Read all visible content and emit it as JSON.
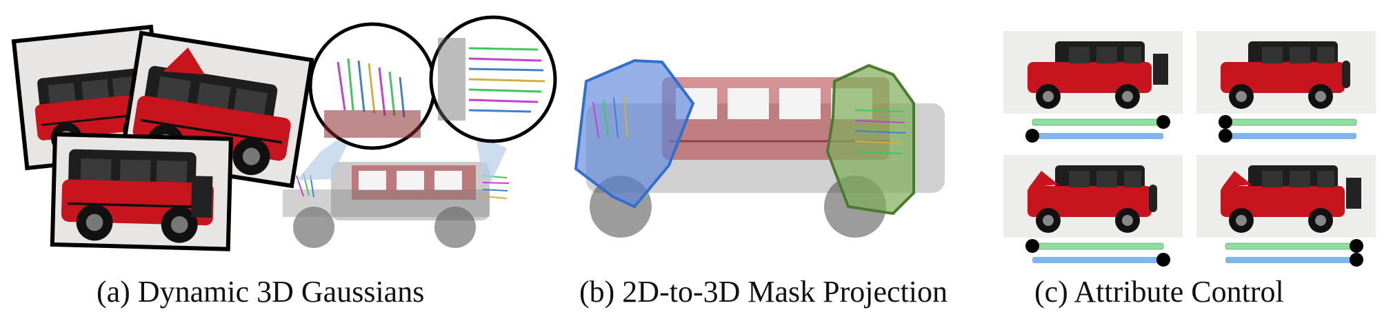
{
  "figure": {
    "panels": [
      {
        "id": "a",
        "caption": "(a) Dynamic 3D Gaussians"
      },
      {
        "id": "b",
        "caption": "(b) 2D-to-3D Mask Projection"
      },
      {
        "id": "c",
        "caption": "(c) Attribute Control"
      }
    ],
    "colors": {
      "car_red": "#c8151d",
      "car_roof": "#1e1e1e",
      "mask_blue": "#5b86d8",
      "mask_blue_edge": "#2f6fd0",
      "mask_green": "#7fae5a",
      "mask_green_edge": "#4a7a2e",
      "slider_green": "#8fe0a0",
      "slider_blue": "#7fb7ec",
      "knob": "#000000"
    },
    "attribute_control": {
      "tiles": [
        {
          "name": "top-left",
          "hood_open": false,
          "trunk_open": true,
          "green_slider": 1.0,
          "blue_slider": 0.0
        },
        {
          "name": "top-right",
          "hood_open": false,
          "trunk_open": false,
          "green_slider": 0.0,
          "blue_slider": 0.0
        },
        {
          "name": "bottom-left",
          "hood_open": true,
          "trunk_open": false,
          "green_slider": 0.0,
          "blue_slider": 1.0
        },
        {
          "name": "bottom-right",
          "hood_open": true,
          "trunk_open": true,
          "green_slider": 1.0,
          "blue_slider": 1.0
        }
      ]
    }
  }
}
